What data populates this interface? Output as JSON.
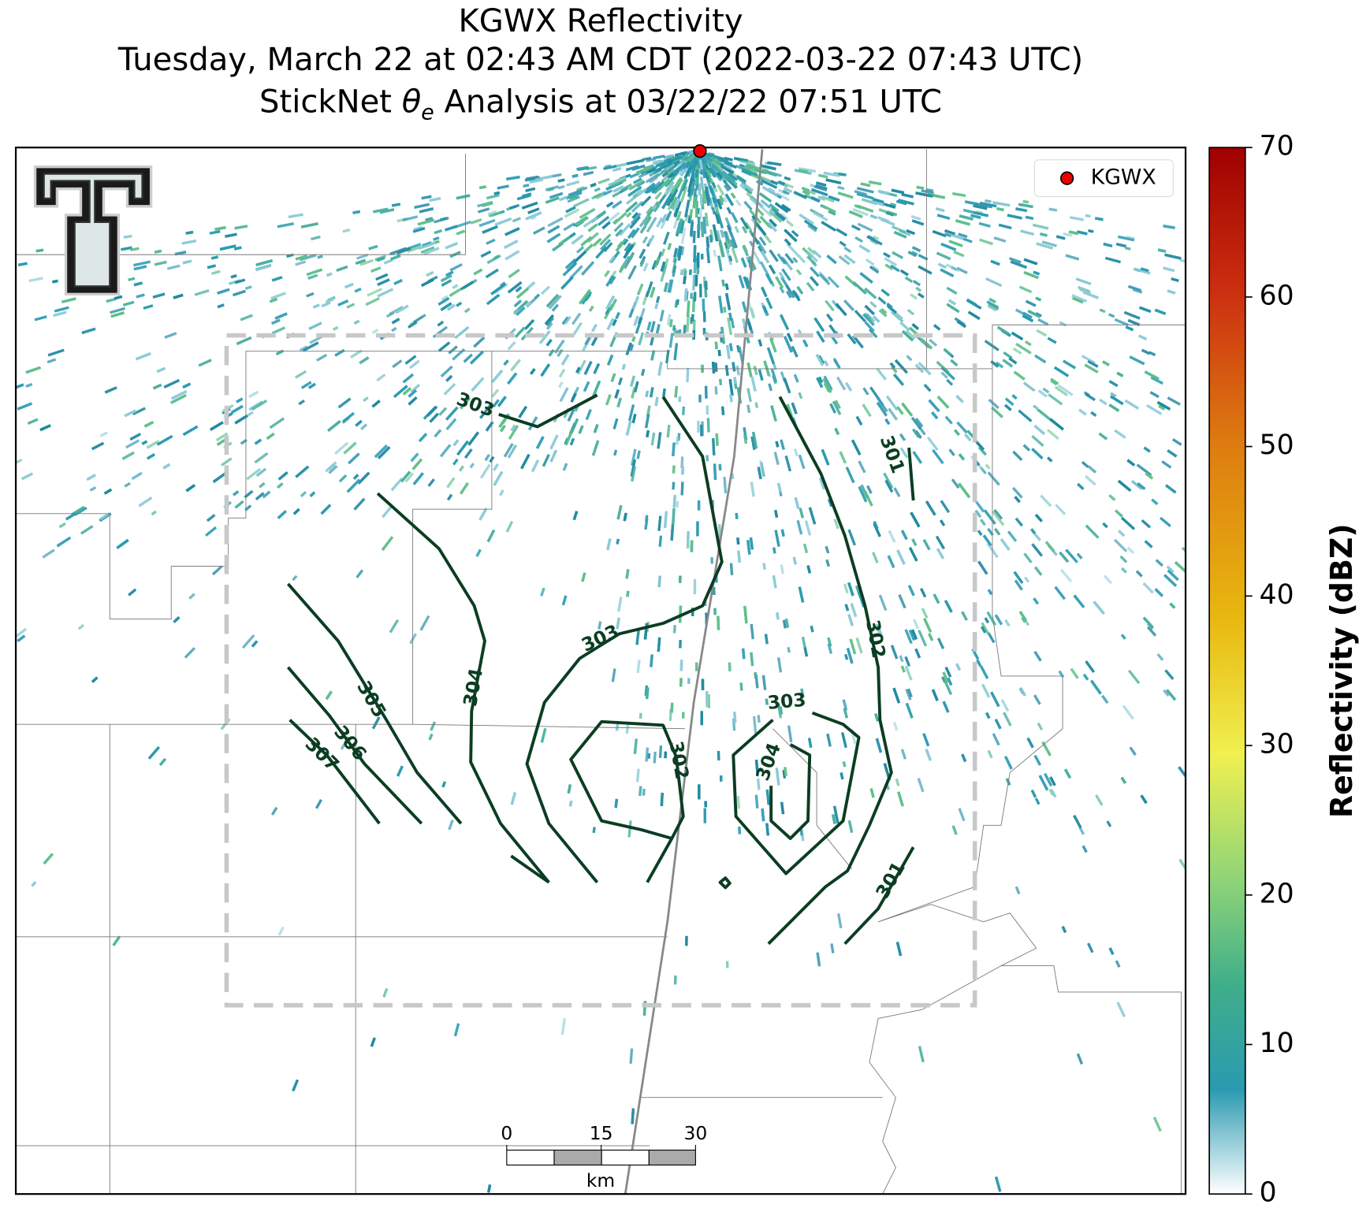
{
  "title": {
    "line1": "KGWX Reflectivity",
    "line2": "Tuesday, March 22 at 02:43 AM CDT (2022-03-22 07:43 UTC)",
    "line3": [
      "StickNet ",
      "θ",
      "e",
      " Analysis at 03/22/22 07:51 UTC"
    ]
  },
  "legend": {
    "label": "KGWX"
  },
  "colorbar": {
    "label": "Reflectivity (dBZ)",
    "lim": [
      0,
      70
    ],
    "ticks": [
      0,
      10,
      20,
      30,
      40,
      50,
      60,
      70
    ]
  },
  "contour_labels": [
    303,
    301,
    303,
    304,
    305,
    306,
    307,
    302,
    302,
    303,
    304,
    301
  ],
  "scale_bar": {
    "lim": [
      0,
      30
    ],
    "ticks": [
      0,
      15,
      30
    ],
    "unit": "km"
  }
}
